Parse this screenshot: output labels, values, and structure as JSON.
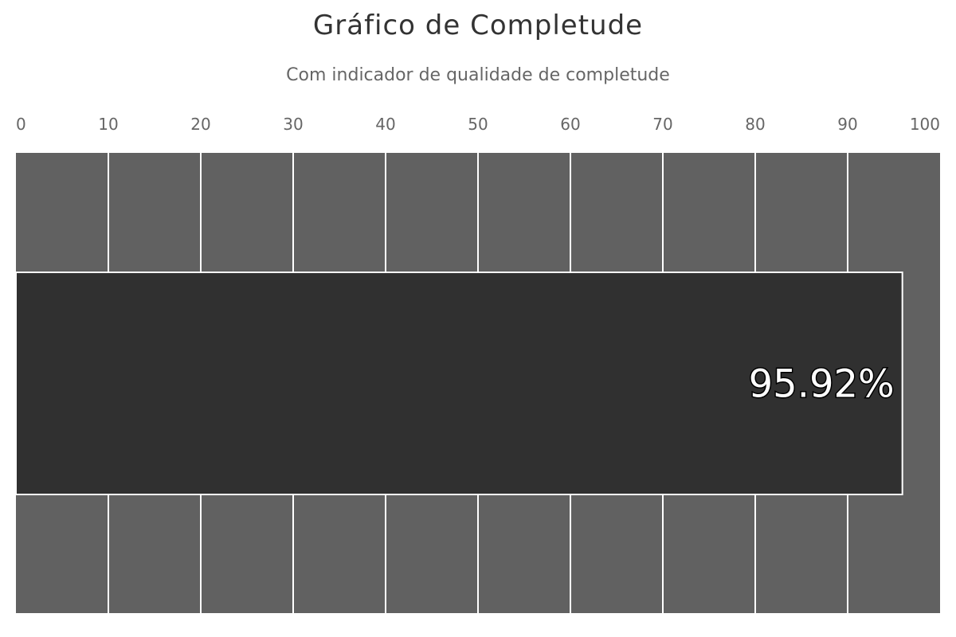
{
  "chart_data": {
    "type": "bar",
    "title": "Gráfico de Completude",
    "subtitle": "Com indicador de qualidade de completude",
    "orientation": "horizontal",
    "xlim": [
      0,
      100
    ],
    "ticks": [
      0,
      10,
      20,
      30,
      40,
      50,
      60,
      70,
      80,
      90,
      100
    ],
    "tick_position": "top",
    "grid": true,
    "series": [
      {
        "values": [
          95.92
        ],
        "data_labels": [
          "95.92%"
        ]
      }
    ],
    "colors": {
      "plot_background": "#616161",
      "bar": "#303030",
      "gridline": "#ffffff",
      "bar_border": "#ffffff"
    }
  }
}
